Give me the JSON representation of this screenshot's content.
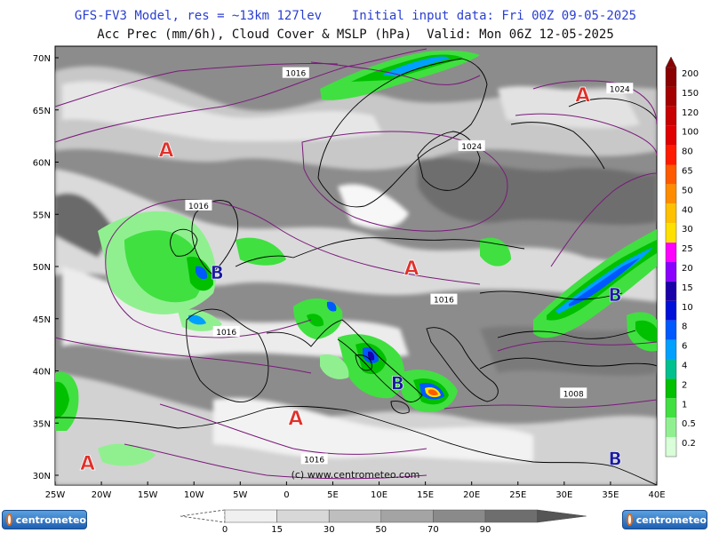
{
  "header": {
    "line1": "GFS-FV3 Model, res = ~13km 127lev    Initial input data: Fri 00Z 09-05-2025",
    "line2": "Acc Prec (mm/6h), Cloud Cover & MSLP (hPa)  Valid: Mon 06Z 12-05-2025"
  },
  "map": {
    "lat_labels": [
      "70N",
      "65N",
      "60N",
      "55N",
      "50N",
      "45N",
      "40N",
      "35N",
      "30N"
    ],
    "lon_labels": [
      "25W",
      "20W",
      "15W",
      "10W",
      "5W",
      "0",
      "5E",
      "10E",
      "15E",
      "20E",
      "25E",
      "30E",
      "35E",
      "40E"
    ],
    "watermark": "(c)  www.centrometeo.com",
    "pressure_labels": [
      {
        "text": "1016",
        "lon": 1,
        "lat": 68.5
      },
      {
        "text": "1024",
        "lon": 36,
        "lat": 67
      },
      {
        "text": "1024",
        "lon": 20,
        "lat": 61.5
      },
      {
        "text": "1016",
        "lon": -9.5,
        "lat": 55.8
      },
      {
        "text": "1016",
        "lon": 17,
        "lat": 46.8
      },
      {
        "text": "1016",
        "lon": -6.5,
        "lat": 43.7
      },
      {
        "text": "1008",
        "lon": 31,
        "lat": 37.8
      },
      {
        "text": "1016",
        "lon": 3,
        "lat": 31.5
      }
    ],
    "high_centers": [
      {
        "letter": "A",
        "lon": -13,
        "lat": 60.5
      },
      {
        "letter": "A",
        "lon": 32,
        "lat": 65.8
      },
      {
        "letter": "A",
        "lon": 13.5,
        "lat": 49.2
      },
      {
        "letter": "A",
        "lon": 1,
        "lat": 34.8
      },
      {
        "letter": "A",
        "lon": -21.5,
        "lat": 30.5
      }
    ],
    "low_centers": [
      {
        "letter": "B",
        "lon": -7.5,
        "lat": 48.8
      },
      {
        "letter": "B",
        "lon": 12,
        "lat": 38.2
      },
      {
        "letter": "B",
        "lon": 35.5,
        "lat": 46.7
      },
      {
        "letter": "B",
        "lon": 35.5,
        "lat": 31
      }
    ]
  },
  "precip_scale": {
    "labels": [
      "200",
      "150",
      "120",
      "100",
      "80",
      "65",
      "50",
      "40",
      "30",
      "25",
      "20",
      "15",
      "10",
      "8",
      "6",
      "4",
      "2",
      "1",
      "0.5",
      "0.2"
    ],
    "colors": [
      "#8b0000",
      "#a50000",
      "#c80000",
      "#e00000",
      "#ff1a00",
      "#ff5a00",
      "#ff8c00",
      "#ffc000",
      "#ffe000",
      "#ff00ff",
      "#8a00ff",
      "#1a00a8",
      "#0010d8",
      "#0058ff",
      "#00a0ff",
      "#00c090",
      "#00c000",
      "#40e040",
      "#90f090",
      "#d8ffd8"
    ]
  },
  "cloud_scale": {
    "labels": [
      "0",
      "15",
      "30",
      "50",
      "70",
      "90"
    ],
    "colors": [
      "#f0f0f0",
      "#d8d8d8",
      "#bebebe",
      "#a4a4a4",
      "#8a8a8a",
      "#6e6e6e"
    ]
  },
  "logos": {
    "left_text": "centrometeo",
    "right_text": "centrometeo"
  }
}
